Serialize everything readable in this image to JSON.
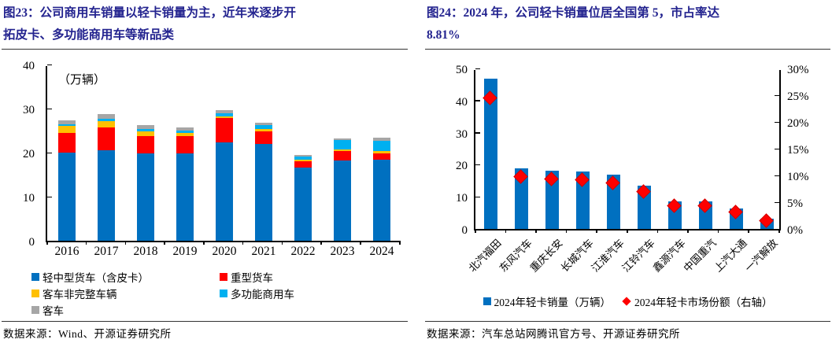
{
  "colors": {
    "title": "#23238F",
    "bar_blue": "#0070C0",
    "red": "#FE0000",
    "yellow": "#FFC000",
    "light_blue": "#00B0F0",
    "gray": "#A6A6A6",
    "diamond_red": "#FE0000"
  },
  "figures": [
    {
      "title_lines": [
        "图23：公司商用车销量以轻卡销量为主，近年来逐步开",
        "拓皮卡、多功能商用车等新品类"
      ],
      "source": "数据来源：Wind、开源证券研究所"
    },
    {
      "title_lines": [
        "图24：2024 年，公司轻卡销量位居全国第 5，市占率达",
        "8.81%"
      ],
      "source": "数据来源：汽车总站网腾讯官方号、开源证券研究所"
    }
  ],
  "chart_data": [
    {
      "type": "bar",
      "stacked": true,
      "title": "公司商用车分品类销量",
      "unit_label": "（万辆）",
      "categories": [
        "2016",
        "2017",
        "2018",
        "2019",
        "2020",
        "2021",
        "2022",
        "2023",
        "2024"
      ],
      "series": [
        {
          "name": "轻中型货车（含皮卡）",
          "color": "#0070C0",
          "values": [
            20.0,
            20.6,
            19.8,
            19.9,
            22.4,
            21.9,
            16.6,
            18.3,
            18.4
          ]
        },
        {
          "name": "重型货车",
          "color": "#FE0000",
          "values": [
            4.4,
            5.1,
            3.9,
            3.9,
            5.4,
            3.0,
            1.4,
            2.1,
            1.5
          ]
        },
        {
          "name": "客车非完整车辆",
          "color": "#FFC000",
          "values": [
            1.6,
            1.4,
            1.1,
            0.6,
            0.5,
            0.5,
            0.35,
            0.4,
            0.5
          ]
        },
        {
          "name": "多功能商用车",
          "color": "#00B0F0",
          "values": [
            0.4,
            0.5,
            0.6,
            0.55,
            0.6,
            0.8,
            0.8,
            2.0,
            2.2
          ]
        },
        {
          "name": "客车",
          "color": "#A6A6A6",
          "values": [
            1.0,
            1.1,
            0.8,
            0.8,
            0.7,
            0.5,
            0.25,
            0.4,
            0.8
          ]
        }
      ],
      "ylim": [
        0,
        40
      ],
      "yticks": [
        0,
        10,
        20,
        30,
        40
      ],
      "grid": false,
      "legend_position": "bottom"
    },
    {
      "type": "bar",
      "subtype": "bar+scatter",
      "title": "2024年各企业轻卡销量与市场份额",
      "categories": [
        "北汽福田",
        "东风汽车",
        "重庆长安",
        "长城汽车",
        "江淮汽车",
        "江铃汽车",
        "鑫源汽车",
        "中国重汽",
        "上汽大通",
        "一汽解放"
      ],
      "series": [
        {
          "name": "2024年轻卡销量（万辆）",
          "type": "bar",
          "axis": "left",
          "color": "#0070C0",
          "values": [
            46.8,
            18.9,
            18.1,
            17.9,
            16.8,
            13.4,
            8.6,
            8.5,
            6.3,
            3.3
          ]
        },
        {
          "name": "2024年轻卡市场份额（右轴）",
          "type": "scatter-diamond",
          "axis": "right",
          "color": "#FE0000",
          "values": [
            24.6,
            9.9,
            9.5,
            9.4,
            8.81,
            7.1,
            4.5,
            4.5,
            3.3,
            1.7
          ]
        }
      ],
      "ylim_left": [
        0,
        50
      ],
      "yticks_left": [
        0,
        10,
        20,
        30,
        40,
        50
      ],
      "ylim_right": [
        0,
        30
      ],
      "yticks_right": [
        0,
        5,
        10,
        15,
        20,
        25,
        30
      ],
      "yticks_right_labels": [
        "0%",
        "5%",
        "10%",
        "15%",
        "20%",
        "25%",
        "30%"
      ],
      "grid": false,
      "legend_position": "bottom"
    }
  ]
}
